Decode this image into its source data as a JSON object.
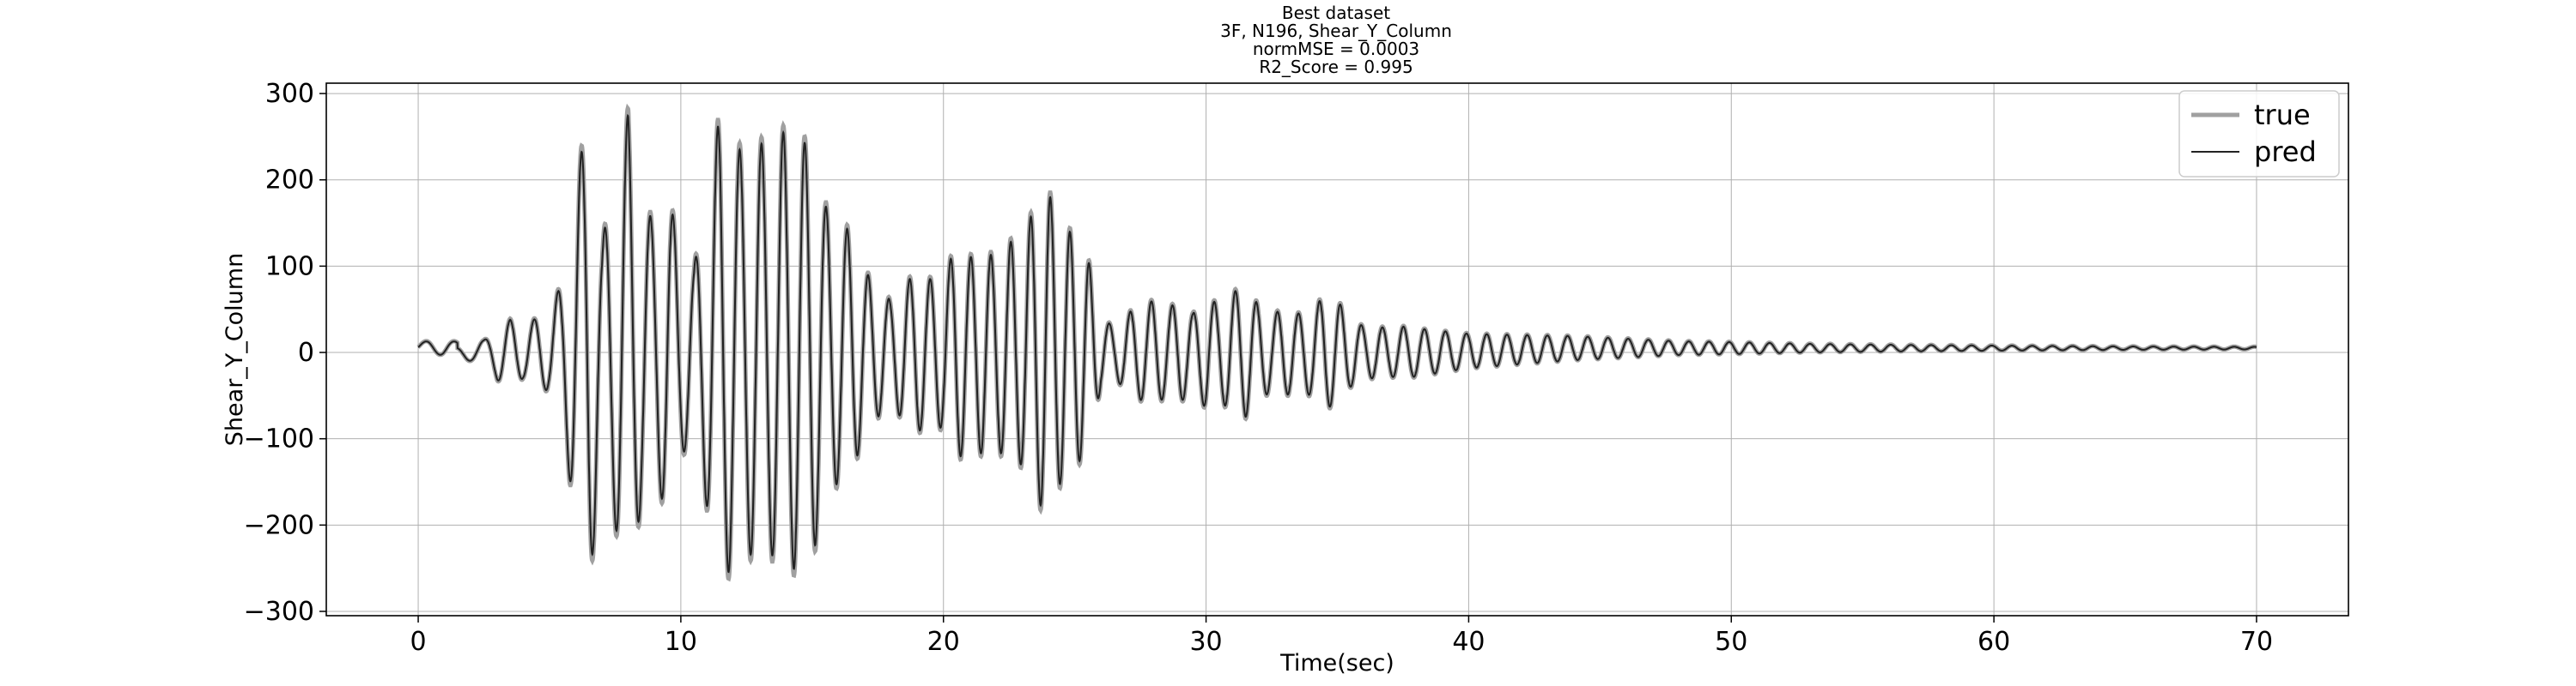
{
  "chart_data": {
    "type": "line",
    "title_lines": [
      "Best dataset",
      "3F, N196, Shear_Y_Column",
      "normMSE = 0.0003",
      "R2_Score = 0.995"
    ],
    "xlabel": "Time(sec)",
    "ylabel": "Shear_Y_Column",
    "xlim": [
      -3.5,
      73.5
    ],
    "ylim": [
      -305,
      312
    ],
    "xticks": [
      0,
      10,
      20,
      30,
      40,
      50,
      60,
      70
    ],
    "xtick_labels": [
      "0",
      "10",
      "20",
      "30",
      "40",
      "50",
      "60",
      "70"
    ],
    "yticks": [
      300,
      200,
      100,
      0,
      -100,
      -200,
      -300
    ],
    "ytick_labels": [
      "300",
      "200",
      "100",
      "0",
      "−100",
      "−200",
      "−300"
    ],
    "grid": true,
    "legend_position": "top-right",
    "series": [
      {
        "name": "true",
        "color": "#a0a0a0",
        "style": "thick"
      },
      {
        "name": "pred",
        "color": "#222222",
        "style": "thin"
      }
    ],
    "envelope": [
      [
        0.0,
        5
      ],
      [
        0.5,
        8
      ],
      [
        1.0,
        9
      ],
      [
        1.5,
        6
      ],
      [
        2.0,
        10
      ],
      [
        2.5,
        14
      ],
      [
        3.0,
        32
      ],
      [
        3.5,
        38
      ],
      [
        4.0,
        30
      ],
      [
        4.5,
        40
      ],
      [
        5.0,
        45
      ],
      [
        5.5,
        85
      ],
      [
        6.0,
        200
      ],
      [
        6.5,
        275
      ],
      [
        7.0,
        130
      ],
      [
        7.5,
        200
      ],
      [
        8.0,
        278
      ],
      [
        8.5,
        175
      ],
      [
        9.0,
        150
      ],
      [
        9.5,
        185
      ],
      [
        10.0,
        120
      ],
      [
        10.5,
        100
      ],
      [
        11.0,
        180
      ],
      [
        11.5,
        280
      ],
      [
        12.0,
        240
      ],
      [
        12.5,
        230
      ],
      [
        13.0,
        243
      ],
      [
        13.5,
        235
      ],
      [
        14.0,
        260
      ],
      [
        14.5,
        245
      ],
      [
        15.0,
        240
      ],
      [
        15.5,
        170
      ],
      [
        16.0,
        150
      ],
      [
        16.5,
        140
      ],
      [
        17.0,
        95
      ],
      [
        17.5,
        75
      ],
      [
        18.0,
        60
      ],
      [
        18.5,
        80
      ],
      [
        19.0,
        92
      ],
      [
        19.5,
        85
      ],
      [
        20.0,
        88
      ],
      [
        20.5,
        125
      ],
      [
        21.0,
        110
      ],
      [
        21.5,
        118
      ],
      [
        22.0,
        110
      ],
      [
        22.5,
        128
      ],
      [
        23.0,
        130
      ],
      [
        23.5,
        172
      ],
      [
        24.0,
        185
      ],
      [
        24.5,
        148
      ],
      [
        25.0,
        135
      ],
      [
        25.5,
        110
      ],
      [
        26.0,
        40
      ],
      [
        26.5,
        30
      ],
      [
        27.0,
        45
      ],
      [
        27.5,
        55
      ],
      [
        28.0,
        60
      ],
      [
        28.5,
        52
      ],
      [
        29.0,
        58
      ],
      [
        29.5,
        45
      ],
      [
        30.0,
        65
      ],
      [
        30.5,
        55
      ],
      [
        31.0,
        70
      ],
      [
        31.5,
        75
      ],
      [
        32.0,
        55
      ],
      [
        32.5,
        45
      ],
      [
        33.0,
        50
      ],
      [
        33.5,
        45
      ],
      [
        34.0,
        50
      ],
      [
        34.5,
        65
      ],
      [
        35.0,
        60
      ],
      [
        35.5,
        40
      ],
      [
        36.0,
        30
      ],
      [
        36.5,
        30
      ],
      [
        37.0,
        28
      ],
      [
        37.5,
        30
      ],
      [
        38.0,
        28
      ],
      [
        38.5,
        26
      ],
      [
        39.0,
        24
      ],
      [
        40.0,
        20
      ],
      [
        42.0,
        17
      ],
      [
        44.0,
        14
      ],
      [
        46.0,
        11
      ],
      [
        48.0,
        8
      ],
      [
        50.0,
        7
      ],
      [
        53.0,
        5
      ],
      [
        56.0,
        4
      ],
      [
        60.0,
        3
      ],
      [
        65.0,
        2
      ],
      [
        70.0,
        1.5
      ]
    ]
  }
}
